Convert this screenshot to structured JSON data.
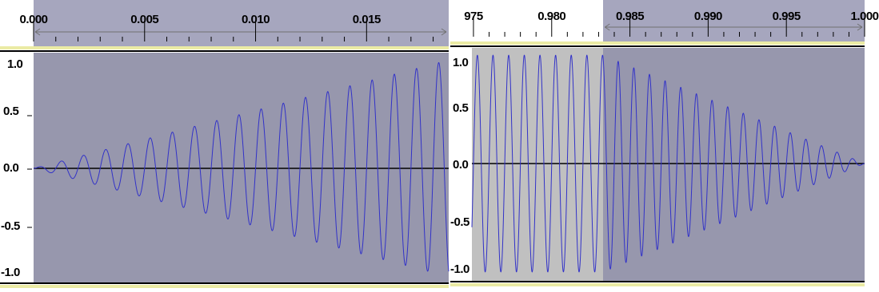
{
  "colors": {
    "ruler_bg": "#ffffff",
    "ruler_selected": "#a6a6be",
    "track_bg": "#c0c0c0",
    "track_selected": "#9797ad",
    "wave": "#3232c8",
    "zero_line": "#000000",
    "yellow_bar": "#ebeba4"
  },
  "left_view": {
    "time_labels": [
      "0.000",
      "0.005",
      "0.010",
      "0.015"
    ],
    "amplitude_labels": [
      "1.0",
      "0.5",
      "0.0",
      "-0.5",
      "-1.0"
    ],
    "time_range": [
      0.0,
      0.0187
    ],
    "selection_start": 0.0,
    "selection_end": 0.0187,
    "waveform": {
      "frequency_hz": 1000,
      "envelope": "fade-in",
      "peak": 0.97
    }
  },
  "right_view": {
    "time_labels": [
      "975",
      "0.980",
      "0.985",
      "0.990",
      "0.995",
      "1.000"
    ],
    "amplitude_labels": [
      "1.0",
      "0.5",
      "0.0",
      "-0.5",
      "-1.0"
    ],
    "time_range": [
      0.9749,
      1.0
    ],
    "selection_start": 0.9833,
    "selection_end": 1.0,
    "waveform": {
      "frequency_hz": 1000,
      "envelope": "fade-out",
      "peak": 0.97
    }
  }
}
